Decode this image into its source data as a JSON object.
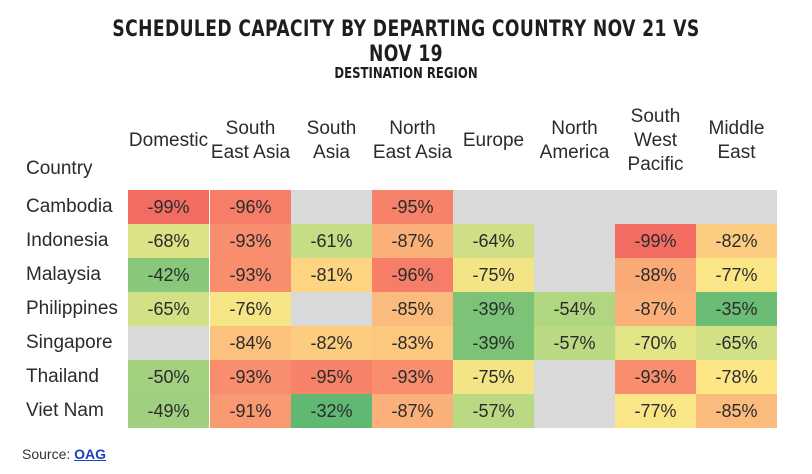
{
  "chart_data": {
    "type": "table",
    "title": "SCHEDULED CAPACITY BY DEPARTING COUNTRY NOV 21 VS NOV 19",
    "subtitle": "DESTINATION REGION",
    "row_header": "Country",
    "columns": [
      "Domestic",
      "South East Asia",
      "South Asia",
      "North East Asia",
      "Europe",
      "North America",
      "South West Pacific",
      "Middle East"
    ],
    "column_display": [
      [
        "Domestic"
      ],
      [
        "South",
        "East Asia"
      ],
      [
        "South",
        "Asia"
      ],
      [
        "North",
        "East Asia"
      ],
      [
        "Europe"
      ],
      [
        "North",
        "America"
      ],
      [
        "South",
        "West",
        "Pacific"
      ],
      [
        "Middle",
        "East"
      ]
    ],
    "rows": [
      "Cambodia",
      "Indonesia",
      "Malaysia",
      "Philippines",
      "Singapore",
      "Thailand",
      "Viet Nam"
    ],
    "values": [
      [
        -99,
        -96,
        null,
        -95,
        null,
        null,
        null,
        null
      ],
      [
        -68,
        -93,
        -61,
        -87,
        -64,
        null,
        -99,
        -82
      ],
      [
        -42,
        -93,
        -81,
        -96,
        -75,
        null,
        -88,
        -77
      ],
      [
        -65,
        -76,
        null,
        -85,
        -39,
        -54,
        -87,
        -35
      ],
      [
        null,
        -84,
        -82,
        -83,
        -39,
        -57,
        -70,
        -65
      ],
      [
        -50,
        -93,
        -95,
        -93,
        -75,
        null,
        -93,
        -78
      ],
      [
        -49,
        -91,
        -32,
        -87,
        -57,
        null,
        -77,
        -85
      ]
    ],
    "value_suffix": "%",
    "empty_color": "#d9d9d9"
  },
  "footer": {
    "source_prefix": "Source: ",
    "source_link": "OAG"
  }
}
